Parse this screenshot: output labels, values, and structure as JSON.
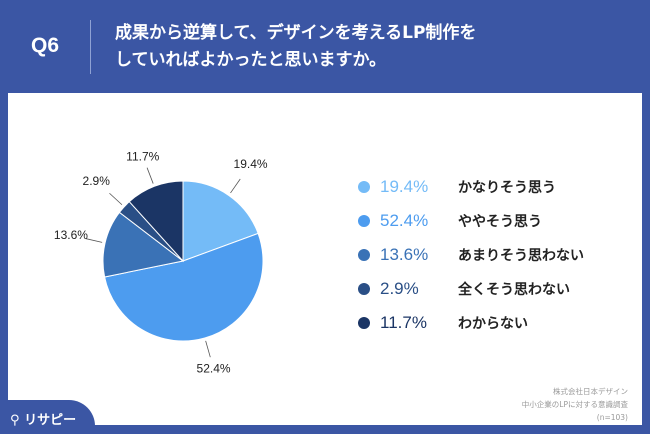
{
  "header": {
    "q": "Q6",
    "title_line1": "成果から逆算して、デザインを考えるLP制作を",
    "title_line2": "していればよかったと思いますか。"
  },
  "chart_data": {
    "type": "pie",
    "categories": [
      "かなりそう思う",
      "ややそう思う",
      "あまりそう思わない",
      "全くそう思わない",
      "わからない"
    ],
    "values": [
      19.4,
      52.4,
      13.6,
      2.9,
      11.7
    ],
    "labels": [
      "19.4%",
      "52.4%",
      "13.6%",
      "2.9%",
      "11.7%"
    ],
    "colors": [
      "#74bbf7",
      "#4d9cef",
      "#3a72b6",
      "#2a4f86",
      "#1b3565"
    ],
    "legend": "right"
  },
  "source": {
    "line1": "株式会社日本デザイン",
    "line2": "中小企業のLPに対する意識調査",
    "line3": "(n=103)"
  },
  "logo": {
    "text": "リサピー"
  }
}
